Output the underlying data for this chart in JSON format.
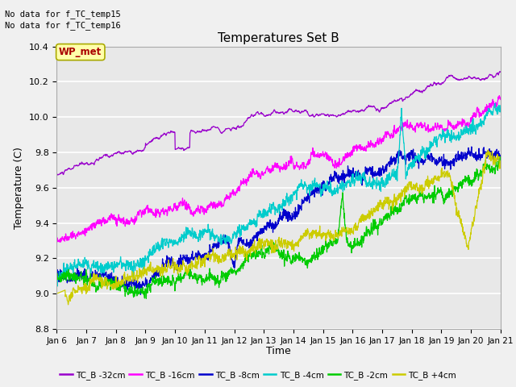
{
  "title": "Temperatures Set B",
  "xlabel": "Time",
  "ylabel": "Temperature (C)",
  "ylim": [
    8.8,
    10.4
  ],
  "annotation_lines": [
    "No data for f_TC_temp15",
    "No data for f_TC_temp16"
  ],
  "wp_met_label": "WP_met",
  "wp_met_color": "#aa0000",
  "wp_met_bg": "#ffffaa",
  "bg_color": "#e8e8e8",
  "grid_color": "#ffffff",
  "series": [
    {
      "label": "TC_B -32cm",
      "color": "#9900cc"
    },
    {
      "label": "TC_B -16cm",
      "color": "#ff00ff"
    },
    {
      "label": "TC_B -8cm",
      "color": "#0000cc"
    },
    {
      "label": "TC_B -4cm",
      "color": "#00cccc"
    },
    {
      "label": "TC_B -2cm",
      "color": "#00cc00"
    },
    {
      "label": "TC_B +4cm",
      "color": "#cccc00"
    }
  ],
  "x_tick_labels": [
    "Jan 6",
    "Jan 7",
    "Jan 8",
    "Jan 9",
    "Jan 10",
    "Jan 11",
    "Jan 12",
    "Jan 13",
    "Jan 14",
    "Jan 15",
    "Jan 16",
    "Jan 17",
    "Jan 18",
    "Jan 19",
    "Jan 20",
    "Jan 21"
  ],
  "n_points": 1440,
  "seed": 42
}
